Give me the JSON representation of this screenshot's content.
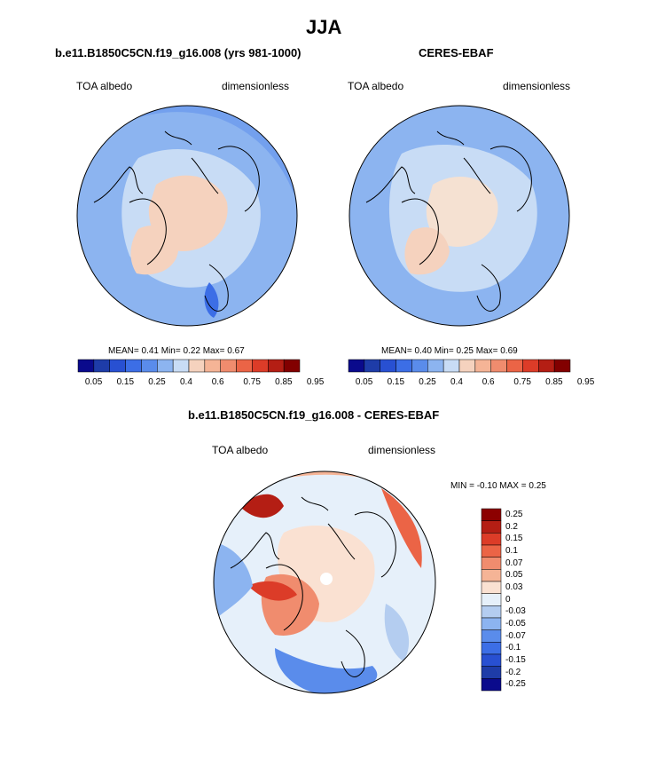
{
  "page_title": "JJA",
  "panels": [
    {
      "title": "b.e11.B1850C5CN.f19_g16.008 (yrs 981-1000)",
      "left_label": "TOA albedo",
      "right_label": "dimensionless",
      "stats": "MEAN=  0.41  Min=  0.22  Max=  0.67",
      "colorbar": {
        "colors": [
          "#0a0a8c",
          "#1e3ca8",
          "#2850d2",
          "#3c6ee6",
          "#5a8ceb",
          "#8cb4f0",
          "#c8dcf5",
          "#f5d2be",
          "#f5b496",
          "#f08c6e",
          "#eb6446",
          "#dc3c28",
          "#b41e14",
          "#820000"
        ],
        "ticks": [
          "0.05",
          "0.15",
          "0.25",
          "0.4",
          "0.6",
          "0.75",
          "0.85",
          "0.95"
        ]
      }
    },
    {
      "title": "CERES-EBAF",
      "left_label": "TOA albedo",
      "right_label": "dimensionless",
      "stats": "MEAN=  0.40  Min=  0.25  Max=  0.69",
      "colorbar": {
        "colors": [
          "#0a0a8c",
          "#1e3ca8",
          "#2850d2",
          "#3c6ee6",
          "#5a8ceb",
          "#8cb4f0",
          "#c8dcf5",
          "#f5d2be",
          "#f5b496",
          "#f08c6e",
          "#eb6446",
          "#dc3c28",
          "#b41e14",
          "#820000"
        ],
        "ticks": [
          "0.05",
          "0.15",
          "0.25",
          "0.4",
          "0.6",
          "0.75",
          "0.85",
          "0.95"
        ]
      }
    }
  ],
  "diff_panel": {
    "title": "b.e11.B1850C5CN.f19_g16.008 - CERES-EBAF",
    "left_label": "TOA albedo",
    "right_label": "dimensionless",
    "stats": "MIN =  -0.10 MAX =   0.25",
    "colorbar": {
      "colors": [
        "#8c0000",
        "#b41e14",
        "#dc3c28",
        "#eb6446",
        "#f08c6e",
        "#f5b496",
        "#fae1d2",
        "#e6f0fa",
        "#b4cdf0",
        "#8cb4f0",
        "#5a8ceb",
        "#3c6ee6",
        "#2850d2",
        "#1e3ca8",
        "#0a0a8c"
      ],
      "ticks": [
        "0.25",
        "0.2",
        "0.15",
        "0.1",
        "0.07",
        "0.05",
        "0.03",
        "0",
        "-0.03",
        "-0.05",
        "-0.07",
        "-0.1",
        "-0.15",
        "-0.2",
        "-0.25"
      ]
    }
  }
}
